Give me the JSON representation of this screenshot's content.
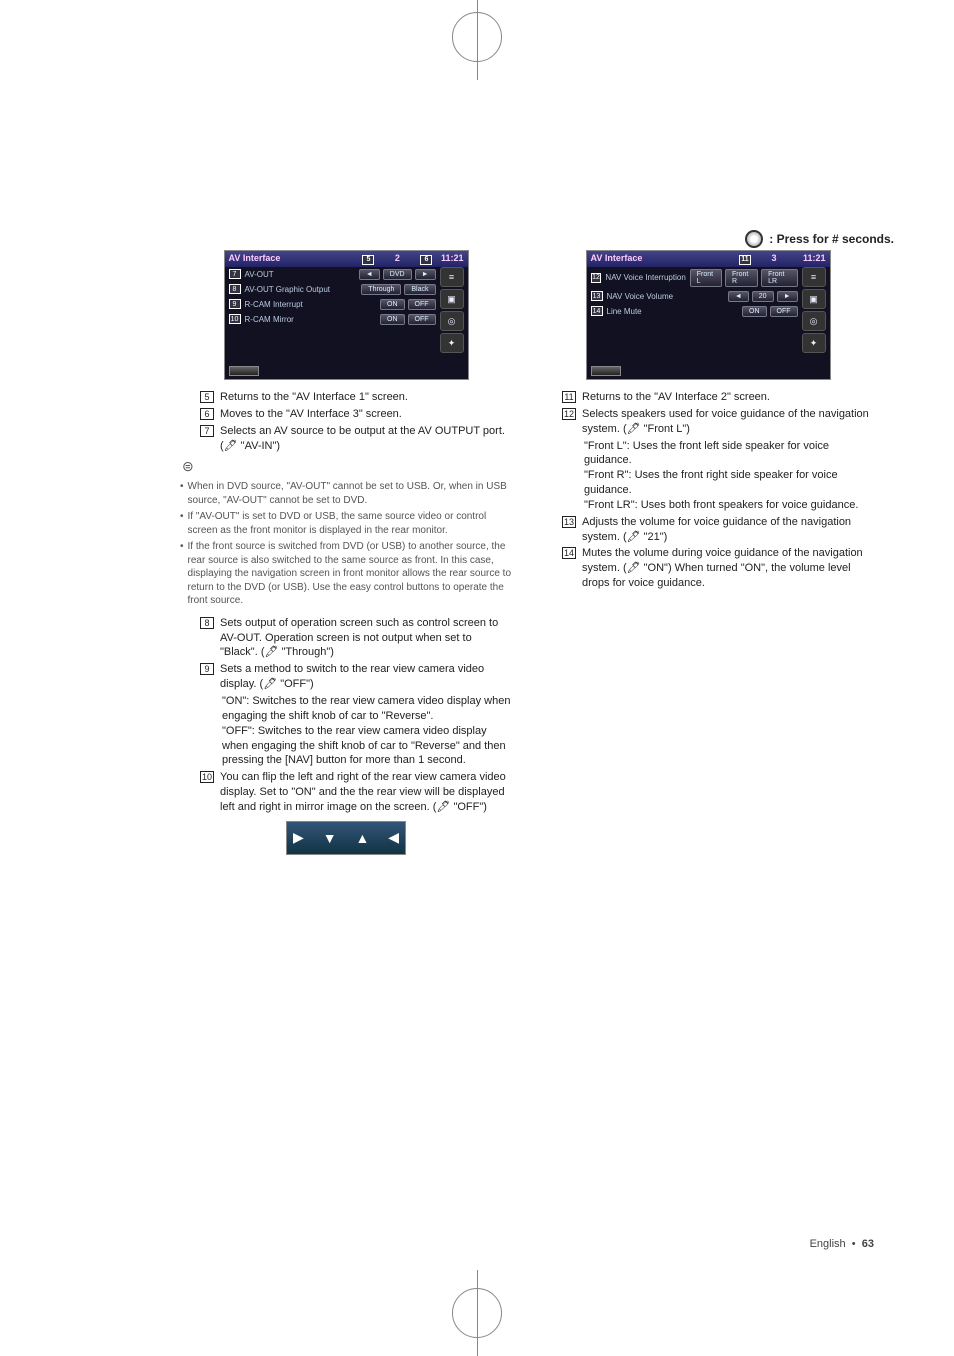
{
  "header": {
    "press_note": ": Press for # seconds."
  },
  "screens": {
    "s2": {
      "title": "AV Interface",
      "pager_center": "2",
      "clock": "11:21",
      "rows": [
        {
          "num": "7",
          "label": "AV-OUT",
          "btns": [
            "◄",
            "DVD",
            "►"
          ]
        },
        {
          "num": "8",
          "label": "AV-OUT Graphic Output",
          "btns": [
            "Through",
            "Black"
          ]
        },
        {
          "num": "9",
          "label": "R-CAM Interrupt",
          "btns": [
            "ON",
            "OFF"
          ]
        },
        {
          "num": "10",
          "label": "R-CAM Mirror",
          "btns": [
            "ON",
            "OFF"
          ]
        }
      ],
      "top_callouts": [
        "5",
        "6"
      ]
    },
    "s3": {
      "title": "AV Interface",
      "pager_center": "3",
      "clock": "11:21",
      "rows": [
        {
          "num": "12",
          "label": "NAV Voice Interruption",
          "btns": [
            "Front L",
            "Front R",
            "Front LR"
          ]
        },
        {
          "num": "13",
          "label": "NAV Voice Volume",
          "btns": [
            "◄",
            "20",
            "►"
          ]
        },
        {
          "num": "14",
          "label": "Line Mute",
          "btns": [
            "ON",
            "OFF"
          ]
        }
      ],
      "top_callouts": [
        "11"
      ]
    }
  },
  "left": {
    "items": [
      {
        "n": "5",
        "t": "Returns to the \"AV Interface 1\" screen."
      },
      {
        "n": "6",
        "t": "Moves to the \"AV Interface 3\" screen."
      },
      {
        "n": "7",
        "t": "Selects an AV source to be output at the AV OUTPUT port. (🖊 \"AV-IN\")"
      }
    ],
    "notes": [
      "When in DVD source, \"AV-OUT\" cannot be set to USB. Or, when in USB source, \"AV-OUT\" cannot be set to DVD.",
      "If \"AV-OUT\" is set to DVD or USB, the same source video or control screen as the front monitor is displayed in the rear monitor.",
      "If the front source is switched from DVD (or USB) to another source, the rear source is also switched to the same source as front. In this case, displaying the navigation screen in front monitor allows the rear source to return to the DVD (or USB). Use the easy control buttons to operate the front source."
    ],
    "items2": [
      {
        "n": "8",
        "t": "Sets output of operation screen such as control screen to AV-OUT. Operation screen is not output when set to \"Black\". (🖊 \"Through\")"
      },
      {
        "n": "9",
        "t": "Sets a method to switch to the rear view camera video display. (🖊 \"OFF\")",
        "sub": [
          "\"ON\":  Switches to the rear view camera video display when engaging the shift knob of car to \"Reverse\".",
          "\"OFF\": Switches to the rear view camera video display when engaging the shift knob of car to \"Reverse\" and then pressing the [NAV] button for more than 1 second."
        ]
      },
      {
        "n": "10",
        "t": "You can flip the left and right of the rear view camera video display. Set to \"ON\" and the the rear view will be displayed left and right in mirror image on the screen. (🖊 \"OFF\")"
      }
    ]
  },
  "right": {
    "items": [
      {
        "n": "11",
        "t": "Returns to the \"AV Interface 2\" screen."
      },
      {
        "n": "12",
        "t": "Selects speakers used for voice guidance of the navigation system. (🖊 \"Front L\")",
        "sub": [
          "\"Front L\":   Uses the front left side speaker for voice guidance.",
          "\"Front R\":   Uses the front right side speaker for voice guidance.",
          "\"Front LR\":  Uses both front speakers for voice guidance."
        ]
      },
      {
        "n": "13",
        "t": "Adjusts the volume for voice guidance of the navigation system. (🖊 \"21\")"
      },
      {
        "n": "14",
        "t": "Mutes the volume during voice guidance of the navigation system. (🖊 \"ON\") When turned \"ON\", the volume level drops for voice guidance."
      }
    ]
  },
  "footer": {
    "lang": "English",
    "page": "63"
  }
}
